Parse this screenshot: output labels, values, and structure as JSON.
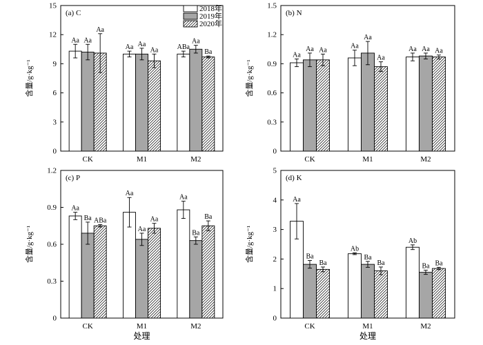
{
  "chart_data": [
    {
      "type": "bar",
      "panel_label": "(a) C",
      "categories": [
        "CK",
        "M1",
        "M2"
      ],
      "ylabel": "含量/g·kg⁻¹",
      "xlabel": "",
      "ylim": [
        0,
        15
      ],
      "yticks": [
        "0",
        "3",
        "6",
        "9",
        "12",
        "15"
      ],
      "legend": {
        "placement": "top-right",
        "entries": [
          "2018年",
          "2019年",
          "2020年"
        ]
      },
      "series": [
        {
          "name": "2018年",
          "values": [
            10.3,
            10.0,
            10.0
          ],
          "errors": [
            0.7,
            0.3,
            0.3
          ],
          "labels": [
            "Aa",
            "Aa",
            "ABa"
          ]
        },
        {
          "name": "2019年",
          "values": [
            10.2,
            10.0,
            10.5
          ],
          "errors": [
            0.8,
            0.6,
            0.4
          ],
          "labels": [
            "Aa",
            "Aa",
            "Aa"
          ]
        },
        {
          "name": "2020年",
          "values": [
            10.1,
            9.3,
            9.7
          ],
          "errors": [
            2.0,
            0.7,
            0.1
          ],
          "labels": [
            "Aa",
            "Aa",
            "Ba"
          ]
        }
      ]
    },
    {
      "type": "bar",
      "panel_label": "(b) N",
      "categories": [
        "CK",
        "M1",
        "M2"
      ],
      "ylabel": "含量/g·kg⁻¹",
      "xlabel": "",
      "ylim": [
        0,
        1.5
      ],
      "yticks": [
        "0",
        "0.3",
        "0.6",
        "0.9",
        "1.2",
        "1.5"
      ],
      "series": [
        {
          "name": "2018年",
          "values": [
            0.91,
            0.96,
            0.97
          ],
          "errors": [
            0.04,
            0.08,
            0.04
          ],
          "labels": [
            "Aa",
            "Aa",
            "Aa"
          ]
        },
        {
          "name": "2019年",
          "values": [
            0.94,
            1.01,
            0.98
          ],
          "errors": [
            0.07,
            0.12,
            0.03
          ],
          "labels": [
            "Aa",
            "Aa",
            "Aa"
          ]
        },
        {
          "name": "2020年",
          "values": [
            0.94,
            0.87,
            0.97
          ],
          "errors": [
            0.06,
            0.05,
            0.02
          ],
          "labels": [
            "Aa",
            "Aa",
            "Aa"
          ]
        }
      ]
    },
    {
      "type": "bar",
      "panel_label": "(c) P",
      "categories": [
        "CK",
        "M1",
        "M2"
      ],
      "ylabel": "含量/g·kg⁻¹",
      "xlabel": "处理",
      "ylim": [
        0,
        1.2
      ],
      "yticks": [
        "0",
        "0.3",
        "0.6",
        "0.9",
        "1.2"
      ],
      "series": [
        {
          "name": "2018年",
          "values": [
            0.83,
            0.86,
            0.88
          ],
          "errors": [
            0.03,
            0.12,
            0.07
          ],
          "labels": [
            "Aa",
            "Aa",
            "Aa"
          ]
        },
        {
          "name": "2019年",
          "values": [
            0.69,
            0.64,
            0.63
          ],
          "errors": [
            0.09,
            0.05,
            0.03
          ],
          "labels": [
            "Ba",
            "Aa",
            "Ba"
          ]
        },
        {
          "name": "2020年",
          "values": [
            0.75,
            0.73,
            0.75
          ],
          "errors": [
            0.01,
            0.04,
            0.04
          ],
          "labels": [
            "ABa",
            "Aa",
            "Ba"
          ]
        }
      ]
    },
    {
      "type": "bar",
      "panel_label": "(d) K",
      "categories": [
        "CK",
        "M1",
        "M2"
      ],
      "ylabel": "含量/g·kg⁻¹",
      "xlabel": "处理",
      "ylim": [
        0,
        5
      ],
      "yticks": [
        "0",
        "1",
        "2",
        "3",
        "4",
        "5"
      ],
      "series": [
        {
          "name": "2018年",
          "values": [
            3.28,
            2.18,
            2.4
          ],
          "errors": [
            0.6,
            0.03,
            0.08
          ],
          "labels": [
            "Aa",
            "Ab",
            "Ab"
          ]
        },
        {
          "name": "2019年",
          "values": [
            1.82,
            1.82,
            1.55
          ],
          "errors": [
            0.13,
            0.1,
            0.07
          ],
          "labels": [
            "Ba",
            "Ba",
            "Ba"
          ]
        },
        {
          "name": "2020年",
          "values": [
            1.65,
            1.6,
            1.68
          ],
          "errors": [
            0.08,
            0.13,
            0.04
          ],
          "labels": [
            "Ba",
            "Ba",
            "Ba"
          ]
        }
      ]
    }
  ],
  "colors": {
    "bar_2018": "#ffffff",
    "bar_2019": "#a6a6a6",
    "bar_2020_hatch": "#000000",
    "stroke": "#000000"
  }
}
